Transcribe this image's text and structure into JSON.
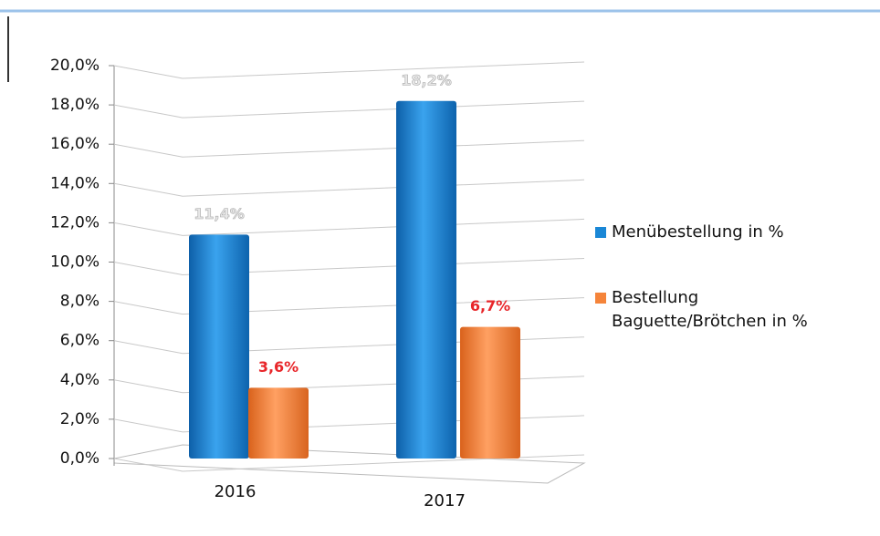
{
  "chart_data": {
    "type": "bar",
    "categories": [
      "2016",
      "2017"
    ],
    "series": [
      {
        "name": "Menübestellung in %",
        "color": "#1a87d6",
        "values": [
          11.4,
          18.2
        ],
        "value_labels": [
          "11,4%",
          "18,2%"
        ]
      },
      {
        "name": "Bestellung Baguette/Brötchen in %",
        "color": "#f5843a",
        "values": [
          3.6,
          6.7
        ],
        "value_labels": [
          "3,6%",
          "6,7%"
        ]
      }
    ],
    "ylim": [
      0,
      20
    ],
    "yticks": [
      {
        "value": 0,
        "label": "0,0%"
      },
      {
        "value": 2,
        "label": "2,0%"
      },
      {
        "value": 4,
        "label": "4,0%"
      },
      {
        "value": 6,
        "label": "6,0%"
      },
      {
        "value": 8,
        "label": "8,0%"
      },
      {
        "value": 10,
        "label": "10,0%"
      },
      {
        "value": 12,
        "label": "12,0%"
      },
      {
        "value": 14,
        "label": "14,0%"
      },
      {
        "value": 16,
        "label": "16,0%"
      },
      {
        "value": 18,
        "label": "18,0%"
      },
      {
        "value": 20,
        "label": "20,0%"
      }
    ],
    "grid": true,
    "legend": "right"
  }
}
